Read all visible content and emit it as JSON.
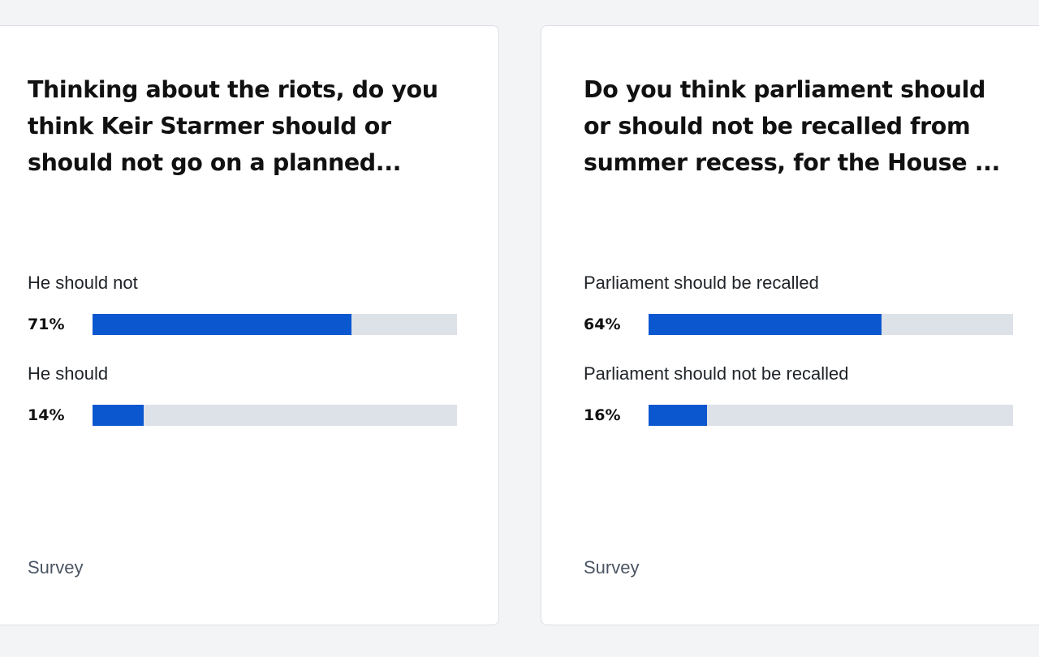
{
  "colors": {
    "page_background": "#f3f4f6",
    "card_background": "#ffffff",
    "bar_fill": "#0b57d0",
    "bar_track": "#dde1e8"
  },
  "cards": [
    {
      "question": "Thinking about the riots, do you think Keir Starmer should or should not go on a planned...",
      "answers": [
        {
          "label": "He should not",
          "percent_label": "71%",
          "value": 71
        },
        {
          "label": "He should",
          "percent_label": "14%",
          "value": 14
        }
      ],
      "footer": "Survey"
    },
    {
      "question": "Do you think parliament should or should not be recalled from summer recess, for the House ...",
      "answers": [
        {
          "label": "Parliament should be recalled",
          "percent_label": "64%",
          "value": 64
        },
        {
          "label": "Parliament should not be recalled",
          "percent_label": "16%",
          "value": 16
        }
      ],
      "footer": "Survey"
    }
  ]
}
